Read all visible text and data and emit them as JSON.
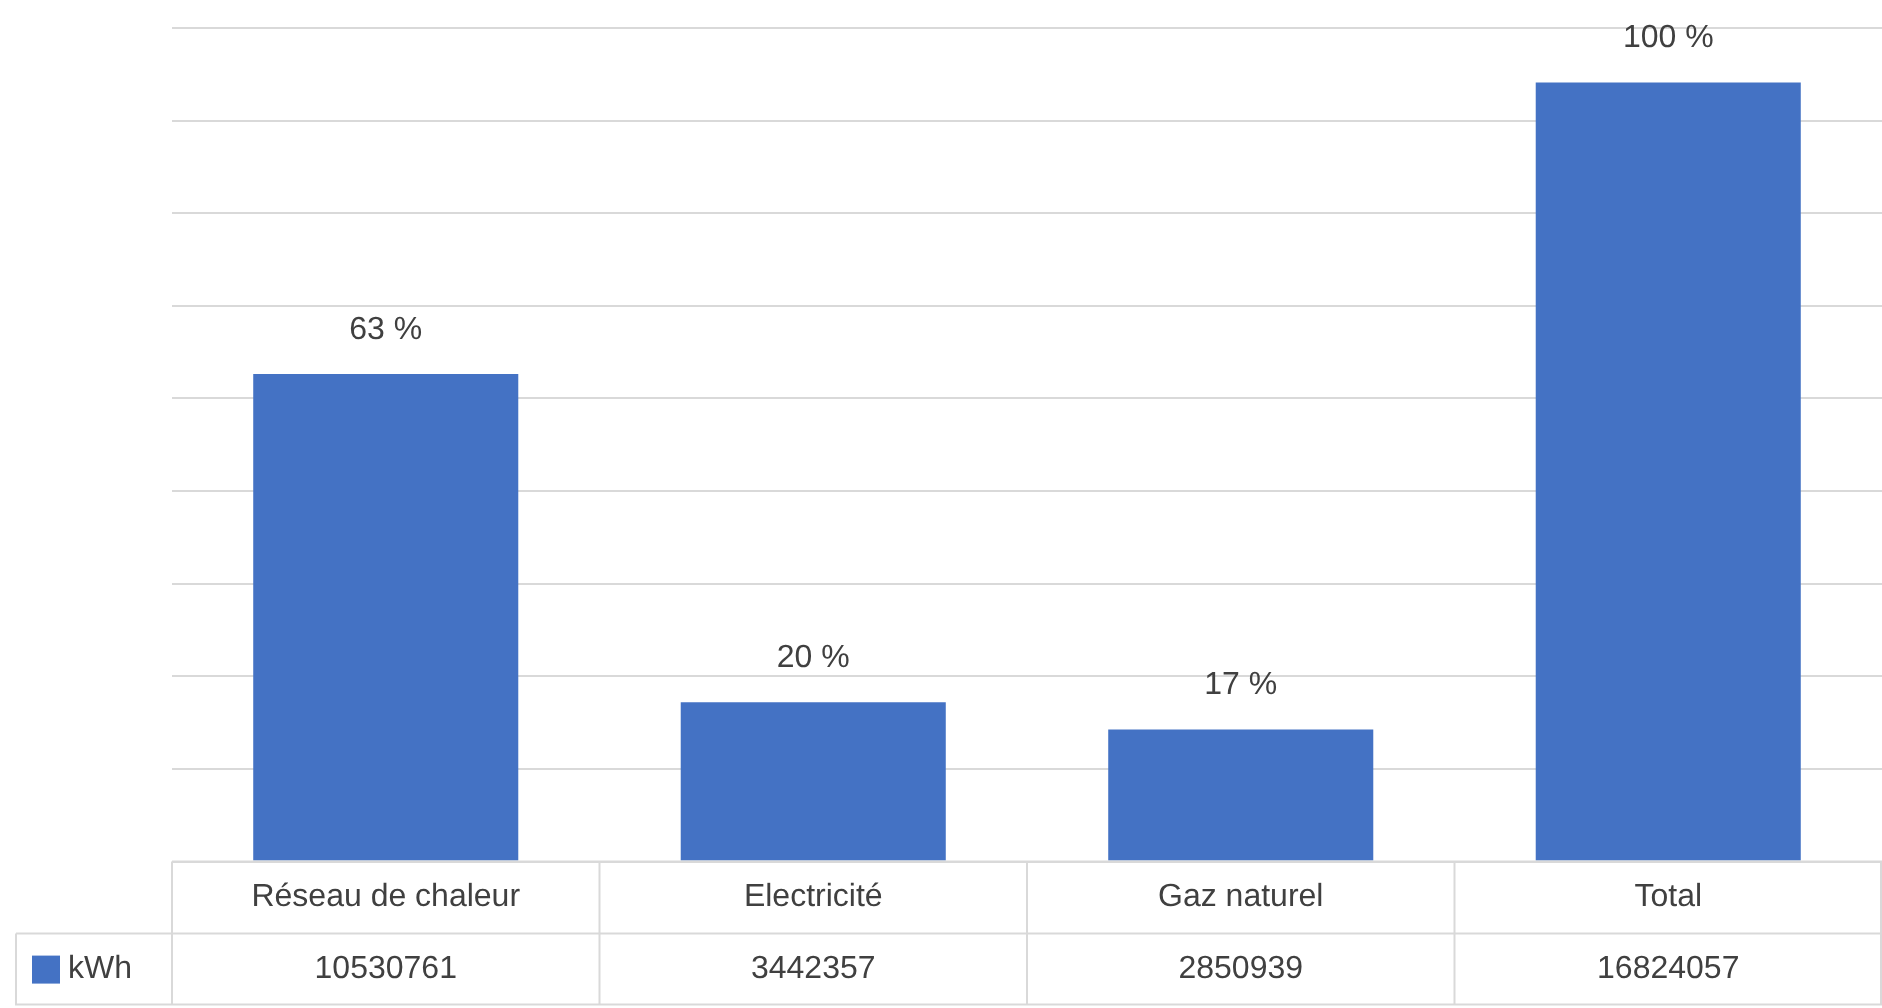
{
  "chart_data": {
    "type": "bar",
    "categories": [
      "Réseau de chaleur",
      "Electricité",
      "Gaz naturel",
      "Total"
    ],
    "series": [
      {
        "name": "kWh",
        "color": "#4472c4",
        "values": [
          10530761,
          3442357,
          2850939,
          16824057
        ]
      }
    ],
    "annotations": [
      {
        "text": "63 %",
        "x": "Réseau de chaleur",
        "y": 10530761
      },
      {
        "text": "20 %",
        "x": "Electricité",
        "y": 3442357
      },
      {
        "text": "17 %",
        "x": "Gaz naturel",
        "y": 2850939
      },
      {
        "text": "100 %",
        "x": "Total",
        "y": 16824057
      }
    ],
    "grid": "y",
    "tick_labels": "x",
    "data_labels": true,
    "legend": "bottom left"
  }
}
